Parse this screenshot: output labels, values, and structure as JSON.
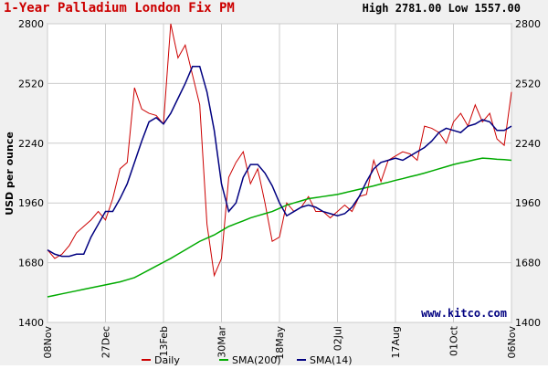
{
  "chart_data": {
    "type": "line",
    "title": "1-Year Palladium London Fix PM",
    "subtitle": "High 2781.00 Low 1557.00",
    "y_label": "USD per ounce",
    "annotation": "www.kitco.com",
    "categories": [
      "08Nov",
      null,
      null,
      null,
      null,
      null,
      null,
      null,
      "27Dec",
      null,
      null,
      null,
      null,
      null,
      null,
      null,
      "13Feb",
      null,
      null,
      null,
      null,
      null,
      null,
      null,
      "30Mar",
      null,
      null,
      null,
      null,
      null,
      null,
      null,
      "18May",
      null,
      null,
      null,
      null,
      null,
      null,
      null,
      "02Jul",
      null,
      null,
      null,
      null,
      null,
      null,
      null,
      "17Aug",
      null,
      null,
      null,
      null,
      null,
      null,
      null,
      "01Oct",
      null,
      null,
      null,
      null,
      null,
      null,
      null,
      "06Nov"
    ],
    "series": [
      {
        "name": "Daily",
        "color": "#cc0000",
        "values": [
          1740,
          1700,
          1720,
          1760,
          1820,
          1850,
          1880,
          1920,
          1880,
          1980,
          2120,
          2150,
          2500,
          2400,
          2380,
          2370,
          2330,
          2800,
          2640,
          2700,
          2560,
          2420,
          1860,
          1620,
          1700,
          2080,
          2150,
          2200,
          2050,
          2120,
          1960,
          1780,
          1800,
          1960,
          1920,
          1940,
          1990,
          1920,
          1920,
          1890,
          1920,
          1950,
          1920,
          1990,
          2000,
          2160,
          2060,
          2160,
          2180,
          2200,
          2190,
          2160,
          2320,
          2310,
          2290,
          2240,
          2340,
          2380,
          2320,
          2420,
          2340,
          2380,
          2260,
          2230,
          2480
        ]
      },
      {
        "name": "SMA(200)",
        "color": "#00aa00",
        "values": [
          1520,
          1527,
          1534,
          1541,
          1548,
          1555,
          1562,
          1569,
          1576,
          1583,
          1590,
          1600,
          1610,
          1628,
          1646,
          1664,
          1682,
          1700,
          1720,
          1740,
          1760,
          1780,
          1795,
          1810,
          1830,
          1850,
          1863,
          1876,
          1890,
          1900,
          1910,
          1920,
          1935,
          1950,
          1960,
          1970,
          1980,
          1985,
          1990,
          1995,
          2000,
          2008,
          2016,
          2024,
          2032,
          2040,
          2049,
          2057,
          2066,
          2074,
          2083,
          2091,
          2100,
          2110,
          2120,
          2130,
          2140,
          2148,
          2155,
          2163,
          2170,
          2168,
          2165,
          2163,
          2160
        ]
      },
      {
        "name": "SMA(14)",
        "color": "#000080",
        "values": [
          1740,
          1720,
          1710,
          1710,
          1720,
          1720,
          1800,
          1860,
          1920,
          1920,
          1980,
          2050,
          2150,
          2250,
          2340,
          2360,
          2330,
          2380,
          2450,
          2520,
          2600,
          2600,
          2480,
          2300,
          2050,
          1920,
          1960,
          2080,
          2140,
          2140,
          2100,
          2040,
          1960,
          1900,
          1920,
          1940,
          1950,
          1940,
          1920,
          1910,
          1900,
          1910,
          1940,
          1990,
          2060,
          2120,
          2150,
          2160,
          2170,
          2160,
          2180,
          2200,
          2220,
          2250,
          2290,
          2310,
          2300,
          2290,
          2320,
          2330,
          2350,
          2340,
          2300,
          2300,
          2320
        ]
      }
    ],
    "ylim": [
      1400,
      2800
    ],
    "yticks": [
      1400,
      1680,
      1960,
      2240,
      2520,
      2800
    ],
    "grid": true
  }
}
